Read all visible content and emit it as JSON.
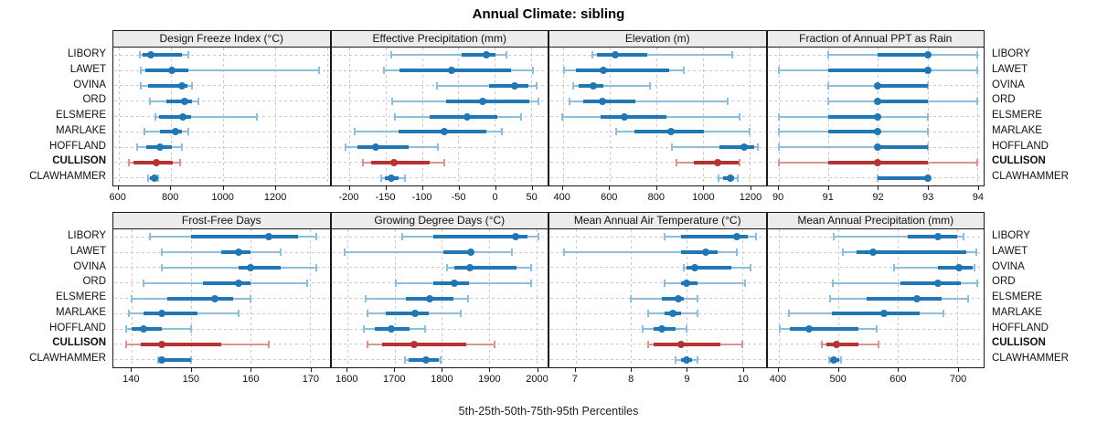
{
  "title": "Annual Climate: sibling",
  "caption": "5th-25th-50th-75th-95th Percentiles",
  "stations": [
    "LIBORY",
    "LAWET",
    "OVINA",
    "ORD",
    "ELSMERE",
    "MARLAKE",
    "HOFFLAND",
    "CULLISON",
    "CLAWHAMMER"
  ],
  "highlight_station": "CULLISON",
  "colors": {
    "series": "#1f77b4",
    "series_light": "#8fbedb",
    "highlight": "#b73333",
    "highlight_light": "#d89494",
    "grid": "#c9c9c9",
    "header_bg": "#ececec",
    "panel_border": "#1a1a1a"
  },
  "chart_data": {
    "type": "percentile_dotplot",
    "percentiles": [
      5,
      25,
      50,
      75,
      95
    ],
    "layout": {
      "rows": 2,
      "cols": 4,
      "grid": "dashed",
      "station_labels": "both-sides"
    },
    "panels": [
      {
        "title": "Design Freeze Index (°C)",
        "band": 0,
        "domain": [
          580,
          1410
        ],
        "ticks": [
          600,
          800,
          1000,
          1200
        ],
        "extra_grid": [
          1400
        ],
        "values": [
          [
            681,
            694,
            725,
            842,
            869
          ],
          [
            684,
            704,
            803,
            869,
            1369
          ],
          [
            687,
            712,
            843,
            864,
            882
          ],
          [
            722,
            782,
            855,
            883,
            905
          ],
          [
            743,
            756,
            847,
            878,
            1131
          ],
          [
            698,
            760,
            820,
            843,
            869
          ],
          [
            673,
            708,
            759,
            805,
            843
          ],
          [
            638,
            658,
            745,
            809,
            835
          ],
          [
            714,
            719,
            737,
            746,
            751
          ]
        ]
      },
      {
        "title": "Effective Precipitation (mm)",
        "band": 0,
        "domain": [
          -225,
          73
        ],
        "ticks": [
          -200,
          -150,
          -100,
          -50,
          0,
          50
        ],
        "extra_grid": [],
        "values": [
          [
            -143,
            -46,
            -11,
            1,
            16
          ],
          [
            -152,
            -131,
            -59,
            23,
            53
          ],
          [
            -80,
            -8,
            28,
            47,
            58
          ],
          [
            -141,
            -67,
            -16,
            48,
            60
          ],
          [
            -137,
            -90,
            -38,
            4,
            37
          ],
          [
            -193,
            -133,
            -70,
            -12,
            10
          ],
          [
            -205,
            -189,
            -164,
            -119,
            -78
          ],
          [
            -182,
            -170,
            -139,
            -90,
            -70
          ],
          [
            -156,
            -151,
            -142,
            -133,
            -123
          ]
        ]
      },
      {
        "title": "Elevation (m)",
        "band": 0,
        "domain": [
          343,
          1268
        ],
        "ticks": [
          400,
          600,
          800,
          1000,
          1200
        ],
        "extra_grid": [],
        "values": [
          [
            528,
            548,
            624,
            763,
            1127
          ],
          [
            404,
            456,
            574,
            855,
            918
          ],
          [
            443,
            469,
            532,
            574,
            774
          ],
          [
            430,
            489,
            571,
            711,
            1107
          ],
          [
            397,
            561,
            665,
            842,
            1156
          ],
          [
            630,
            705,
            865,
            1003,
            1199
          ],
          [
            868,
            1071,
            1178,
            1221,
            1234
          ],
          [
            885,
            960,
            1064,
            1151,
            1156
          ],
          [
            1068,
            1088,
            1119,
            1133,
            1149
          ]
        ]
      },
      {
        "title": "Fraction of Annual PPT as Rain",
        "band": 0,
        "domain": [
          89.77,
          94.13
        ],
        "ticks": [
          90,
          91,
          92,
          93,
          94
        ],
        "extra_grid": [],
        "values": [
          [
            91,
            92,
            93,
            93,
            94
          ],
          [
            90,
            91,
            93,
            93,
            94
          ],
          [
            91,
            92,
            92,
            93,
            93
          ],
          [
            91,
            92,
            92,
            93,
            94
          ],
          [
            90,
            91,
            92,
            92,
            93
          ],
          [
            90,
            91,
            92,
            92,
            93
          ],
          [
            90,
            92,
            92,
            93,
            93
          ],
          [
            90,
            91,
            92,
            93,
            94
          ],
          [
            92,
            92,
            93,
            93,
            93
          ]
        ]
      },
      {
        "title": "Frost-Free Days",
        "band": 1,
        "domain": [
          136.9,
          173.3
        ],
        "ticks": [
          140,
          150,
          160,
          170
        ],
        "extra_grid": [],
        "values": [
          [
            143,
            150,
            163,
            168,
            171
          ],
          [
            145,
            155,
            158,
            160,
            165
          ],
          [
            145,
            158,
            160,
            165,
            171
          ],
          [
            142,
            152,
            158,
            160,
            169.5
          ],
          [
            140,
            146,
            154,
            157,
            160
          ],
          [
            139.5,
            142,
            145,
            151,
            158
          ],
          [
            139,
            140,
            142,
            145,
            150
          ],
          [
            139,
            141.5,
            145,
            155,
            163
          ],
          [
            144.5,
            145,
            145,
            150,
            150
          ]
        ]
      },
      {
        "title": "Growing Degree Days (°C)",
        "band": 1,
        "domain": [
          1566,
          2024
        ],
        "ticks": [
          1600,
          1700,
          1800,
          1900,
          2000
        ],
        "extra_grid": [],
        "values": [
          [
            1716,
            1782,
            1957,
            1981,
            2004
          ],
          [
            1595,
            1804,
            1861,
            1867,
            1948
          ],
          [
            1811,
            1827,
            1860,
            1958,
            1990
          ],
          [
            1703,
            1782,
            1826,
            1858,
            1990
          ],
          [
            1639,
            1724,
            1774,
            1825,
            1855
          ],
          [
            1642,
            1682,
            1743,
            1772,
            1840
          ],
          [
            1634,
            1658,
            1693,
            1731,
            1765
          ],
          [
            1642,
            1673,
            1742,
            1851,
            1911
          ],
          [
            1722,
            1729,
            1766,
            1793,
            1798
          ]
        ]
      },
      {
        "title": "Mean Annual Air Temperature (°C)",
        "band": 1,
        "domain": [
          6.53,
          10.42
        ],
        "ticks": [
          7,
          8,
          9,
          10
        ],
        "extra_grid": [],
        "values": [
          [
            8.6,
            8.9,
            9.9,
            10.1,
            10.25
          ],
          [
            6.8,
            8.9,
            9.35,
            9.55,
            9.9
          ],
          [
            8.95,
            9.0,
            9.15,
            9.8,
            10.15
          ],
          [
            8.6,
            8.9,
            9.0,
            9.2,
            10.05
          ],
          [
            8.0,
            8.55,
            8.85,
            8.95,
            9.2
          ],
          [
            8.3,
            8.6,
            8.75,
            8.9,
            9.2
          ],
          [
            8.2,
            8.4,
            8.55,
            8.8,
            9.0
          ],
          [
            8.3,
            8.4,
            8.9,
            9.6,
            10.0
          ],
          [
            8.8,
            8.9,
            9.0,
            9.1,
            9.2
          ]
        ]
      },
      {
        "title": "Mean Annual Precipitation (mm)",
        "band": 1,
        "domain": [
          381,
          744
        ],
        "ticks": [
          400,
          500,
          600,
          700
        ],
        "extra_grid": [],
        "values": [
          [
            492,
            617,
            668,
            700,
            710
          ],
          [
            507,
            530,
            558,
            715,
            732
          ],
          [
            594,
            667,
            703,
            725,
            728
          ],
          [
            490,
            604,
            667,
            706,
            734
          ],
          [
            486,
            548,
            632,
            673,
            718
          ],
          [
            417,
            489,
            577,
            637,
            676
          ],
          [
            402,
            419,
            451,
            533,
            565
          ],
          [
            472,
            480,
            497,
            533,
            568
          ],
          [
            484,
            486,
            492,
            501,
            505
          ]
        ]
      }
    ]
  }
}
